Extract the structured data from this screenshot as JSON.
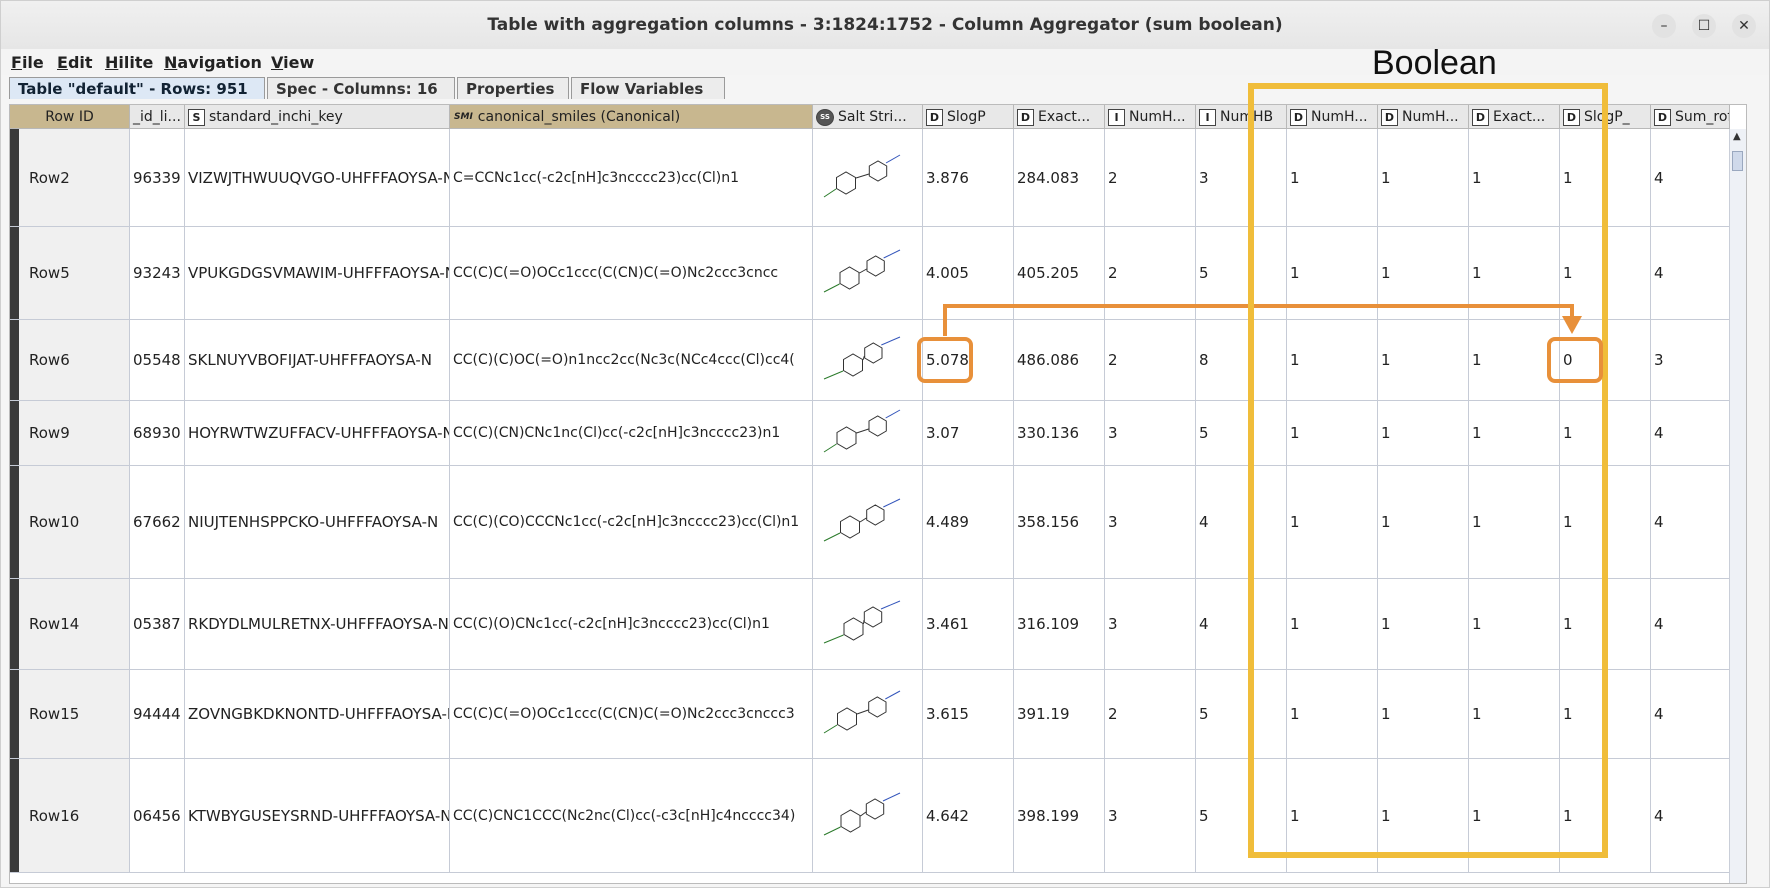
{
  "window": {
    "title": "Table with aggregation columns - 3:1824:1752 - Column Aggregator (sum boolean)",
    "controls": [
      "–",
      "☐",
      "✕"
    ]
  },
  "menu": {
    "items": [
      {
        "first": "F",
        "rest": "ile"
      },
      {
        "first": "E",
        "rest": "dit"
      },
      {
        "first": "H",
        "rest": "ilite"
      },
      {
        "first": "N",
        "rest": "avigation"
      },
      {
        "first": "V",
        "rest": "iew"
      }
    ]
  },
  "tabs": [
    "Table \"default\" - Rows: 951",
    "Spec - Columns: 16",
    "Properties",
    "Flow Variables"
  ],
  "table": {
    "columns": [
      {
        "label": "Row ID",
        "type": ""
      },
      {
        "label": "_id_li...",
        "type": ""
      },
      {
        "label": "standard_inchi_key",
        "type": "S"
      },
      {
        "label": "canonical_smiles (Canonical)",
        "type": "SMI"
      },
      {
        "label": "Salt Stri...",
        "type": "◉"
      },
      {
        "label": "SlogP",
        "type": "D"
      },
      {
        "label": "Exact...",
        "type": "D"
      },
      {
        "label": "NumH...",
        "type": "I"
      },
      {
        "label": "NumHB",
        "type": "I"
      },
      {
        "label": "NumH...",
        "type": "D"
      },
      {
        "label": "NumH...",
        "type": "D"
      },
      {
        "label": "Exact...",
        "type": "D"
      },
      {
        "label": "SlogP_",
        "type": "D"
      },
      {
        "label": "Sum_rof",
        "type": "D"
      }
    ],
    "rows": [
      [
        "Row2",
        "96339",
        "VIZWJTHWUUQVGO-UHFFFAOYSA-N",
        "C=CCNc1cc(-c2c[nH]c3ncccc23)cc(Cl)n1",
        "",
        "3.876",
        "284.083",
        "2",
        "3",
        "1",
        "1",
        "1",
        "1",
        "4"
      ],
      [
        "Row5",
        "93243",
        "VPUKGDGSVMAWIM-UHFFFAOYSA-N",
        "CC(C)C(=O)OCc1ccc(C(CN)C(=O)Nc2ccc3cncc",
        "",
        "4.005",
        "405.205",
        "2",
        "5",
        "1",
        "1",
        "1",
        "1",
        "4"
      ],
      [
        "Row6",
        "05548",
        "SKLNUYVBOFIJAT-UHFFFAOYSA-N",
        "CC(C)(C)OC(=O)n1ncc2cc(Nc3c(NCc4ccc(Cl)cc4(",
        "",
        "5.078",
        "486.086",
        "2",
        "8",
        "1",
        "1",
        "1",
        "0",
        "3"
      ],
      [
        "Row9",
        "68930",
        "HOYRWTWZUFFACV-UHFFFAOYSA-N",
        "CC(C)(CN)CNc1nc(Cl)cc(-c2c[nH]c3ncccc23)n1",
        "",
        "3.07",
        "330.136",
        "3",
        "5",
        "1",
        "1",
        "1",
        "1",
        "4"
      ],
      [
        "Row10",
        "67662",
        "NIUJTENHSPPCKO-UHFFFAOYSA-N",
        "CC(C)(CO)CCCNc1cc(-c2c[nH]c3ncccc23)cc(Cl)n1",
        "",
        "4.489",
        "358.156",
        "3",
        "4",
        "1",
        "1",
        "1",
        "1",
        "4"
      ],
      [
        "Row14",
        "05387",
        "RKDYDLMULRETNX-UHFFFAOYSA-N",
        "CC(C)(O)CNc1cc(-c2c[nH]c3ncccc23)cc(Cl)n1",
        "",
        "3.461",
        "316.109",
        "3",
        "4",
        "1",
        "1",
        "1",
        "1",
        "4"
      ],
      [
        "Row15",
        "94444",
        "ZOVNGBKDKNONTD-UHFFFAOYSA-N",
        "CC(C)C(=O)OCc1ccc(C(CN)C(=O)Nc2ccc3cnccc3",
        "",
        "3.615",
        "391.19",
        "2",
        "5",
        "1",
        "1",
        "1",
        "1",
        "4"
      ],
      [
        "Row16",
        "06456",
        "KTWBYGUSEYSRND-UHFFFAOYSA-N",
        "CC(C)CNC1CCC(Nc2nc(Cl)cc(-c3c[nH]c4ncccc34)",
        "",
        "4.642",
        "398.199",
        "3",
        "5",
        "1",
        "1",
        "1",
        "1",
        "4"
      ]
    ]
  },
  "annotation": {
    "label": "Boolean",
    "box_color": "#f0bd3a",
    "highlight_color": "#e8903a"
  }
}
